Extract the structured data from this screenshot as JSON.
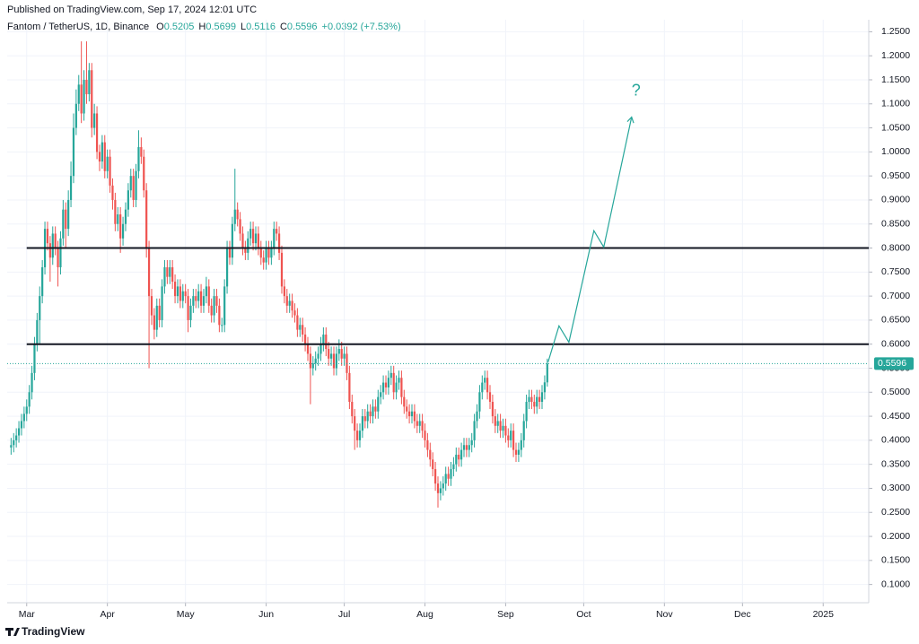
{
  "header": {
    "published": "Published on TradingView.com, Sep 17, 2024 12:01 UTC",
    "footer": "TradingView"
  },
  "chart_data": {
    "type": "candlestick",
    "title": "Fantom / TetherUS, 1D, Binance",
    "ohlc_legend": [
      {
        "key": "O",
        "text": "0.5205"
      },
      {
        "key": "H",
        "text": "0.5699"
      },
      {
        "key": "L",
        "text": "0.5116"
      },
      {
        "key": "C",
        "text": "0.5596"
      }
    ],
    "change": "+0.0392 (+7.53%)",
    "up_color": "#26a69a",
    "down_color": "#ef5350",
    "xlim": [
      53.5,
      384.5
    ],
    "ylim": [
      0.062,
      1.275
    ],
    "grid": true,
    "xticks": [
      {
        "value": 61,
        "label": "Mar"
      },
      {
        "value": 92,
        "label": "Apr"
      },
      {
        "value": 122,
        "label": "May"
      },
      {
        "value": 153,
        "label": "Jun"
      },
      {
        "value": 183,
        "label": "Jul"
      },
      {
        "value": 214,
        "label": "Aug"
      },
      {
        "value": 245,
        "label": "Sep"
      },
      {
        "value": 275,
        "label": "Oct"
      },
      {
        "value": 306,
        "label": "Nov"
      },
      {
        "value": 336,
        "label": "Dec"
      },
      {
        "value": 367,
        "label": "2025"
      }
    ],
    "yticks": [
      {
        "value": 0.1,
        "label": "0.1000"
      },
      {
        "value": 0.15,
        "label": "0.1500"
      },
      {
        "value": 0.2,
        "label": "0.2000"
      },
      {
        "value": 0.25,
        "label": "0.2500"
      },
      {
        "value": 0.3,
        "label": "0.3000"
      },
      {
        "value": 0.35,
        "label": "0.3500"
      },
      {
        "value": 0.4,
        "label": "0.4000"
      },
      {
        "value": 0.45,
        "label": "0.4500"
      },
      {
        "value": 0.5,
        "label": "0.5000"
      },
      {
        "value": 0.55,
        "label": "0.5500"
      },
      {
        "value": 0.6,
        "label": "0.6000"
      },
      {
        "value": 0.65,
        "label": "0.6500"
      },
      {
        "value": 0.7,
        "label": "0.7000"
      },
      {
        "value": 0.75,
        "label": "0.7500"
      },
      {
        "value": 0.8,
        "label": "0.8000"
      },
      {
        "value": 0.85,
        "label": "0.8500"
      },
      {
        "value": 0.9,
        "label": "0.9000"
      },
      {
        "value": 0.95,
        "label": "0.9500"
      },
      {
        "value": 1.0,
        "label": "1.0000"
      },
      {
        "value": 1.05,
        "label": "1.0500"
      },
      {
        "value": 1.1,
        "label": "1.1000"
      },
      {
        "value": 1.15,
        "label": "1.1500"
      },
      {
        "value": 1.2,
        "label": "1.2000"
      },
      {
        "value": 1.25,
        "label": "1.2500"
      }
    ],
    "hlines": [
      0.8,
      0.6
    ],
    "projection": {
      "label": "?",
      "color": "#26a69a",
      "x": [
        261.3,
        265.5,
        269.3,
        278.9,
        282.7,
        293.4
      ],
      "y": [
        0.5626,
        0.638,
        0.604,
        0.836,
        0.802,
        1.0725
      ]
    },
    "x": [
      55,
      56,
      57,
      58,
      59,
      60,
      61,
      62,
      63,
      64,
      65,
      66,
      67,
      68,
      69,
      70,
      71,
      72,
      73,
      74,
      75,
      76,
      77,
      78,
      79,
      80,
      81,
      82,
      83,
      84,
      85,
      86,
      87,
      88,
      89,
      90,
      91,
      92,
      93,
      94,
      95,
      96,
      97,
      98,
      99,
      100,
      101,
      102,
      103,
      104,
      105,
      106,
      107,
      108,
      109,
      110,
      111,
      112,
      113,
      114,
      115,
      116,
      117,
      118,
      119,
      120,
      121,
      122,
      123,
      124,
      125,
      126,
      127,
      128,
      129,
      130,
      131,
      132,
      133,
      134,
      135,
      136,
      137,
      138,
      139,
      140,
      141,
      142,
      143,
      144,
      145,
      146,
      147,
      148,
      149,
      150,
      151,
      152,
      153,
      154,
      155,
      156,
      157,
      158,
      159,
      160,
      161,
      162,
      163,
      164,
      165,
      166,
      167,
      168,
      169,
      170,
      171,
      172,
      173,
      174,
      175,
      176,
      177,
      178,
      179,
      180,
      181,
      182,
      183,
      184,
      185,
      186,
      187,
      188,
      189,
      190,
      191,
      192,
      193,
      194,
      195,
      196,
      197,
      198,
      199,
      200,
      201,
      202,
      203,
      204,
      205,
      206,
      207,
      208,
      209,
      210,
      211,
      212,
      213,
      214,
      215,
      216,
      217,
      218,
      219,
      220,
      221,
      222,
      223,
      224,
      225,
      226,
      227,
      228,
      229,
      230,
      231,
      232,
      233,
      234,
      235,
      236,
      237,
      238,
      239,
      240,
      241,
      242,
      243,
      244,
      245,
      246,
      247,
      248,
      249,
      250,
      251,
      252,
      253,
      254,
      255,
      256,
      257,
      258,
      259,
      260,
      261
    ],
    "open": [
      0.385,
      0.39,
      0.4,
      0.41,
      0.425,
      0.44,
      0.455,
      0.47,
      0.5,
      0.54,
      0.6,
      0.65,
      0.7,
      0.76,
      0.84,
      0.81,
      0.78,
      0.83,
      0.8,
      0.76,
      0.82,
      0.88,
      0.84,
      0.9,
      0.95,
      1.05,
      1.1,
      1.14,
      1.08,
      1.15,
      1.12,
      1.17,
      1.05,
      1.08,
      1.0,
      0.98,
      1.02,
      0.96,
      0.99,
      0.93,
      0.9,
      0.85,
      0.87,
      0.82,
      0.85,
      0.88,
      0.92,
      0.95,
      0.9,
      0.96,
      1.01,
      0.99,
      0.92,
      0.8,
      0.7,
      0.66,
      0.63,
      0.68,
      0.65,
      0.72,
      0.76,
      0.74,
      0.76,
      0.73,
      0.7,
      0.72,
      0.69,
      0.71,
      0.7,
      0.65,
      0.68,
      0.7,
      0.69,
      0.71,
      0.68,
      0.7,
      0.72,
      0.68,
      0.66,
      0.7,
      0.68,
      0.64,
      0.64,
      0.72,
      0.8,
      0.78,
      0.85,
      0.88,
      0.86,
      0.83,
      0.8,
      0.79,
      0.82,
      0.84,
      0.81,
      0.83,
      0.8,
      0.78,
      0.77,
      0.8,
      0.78,
      0.8,
      0.84,
      0.83,
      0.79,
      0.72,
      0.7,
      0.68,
      0.69,
      0.67,
      0.66,
      0.63,
      0.64,
      0.62,
      0.6,
      0.58,
      0.55,
      0.56,
      0.57,
      0.58,
      0.6,
      0.62,
      0.59,
      0.57,
      0.58,
      0.55,
      0.58,
      0.59,
      0.57,
      0.58,
      0.54,
      0.48,
      0.45,
      0.42,
      0.4,
      0.42,
      0.45,
      0.44,
      0.46,
      0.45,
      0.47,
      0.46,
      0.49,
      0.5,
      0.52,
      0.51,
      0.53,
      0.54,
      0.5,
      0.52,
      0.53,
      0.49,
      0.47,
      0.46,
      0.45,
      0.46,
      0.44,
      0.43,
      0.44,
      0.42,
      0.4,
      0.38,
      0.36,
      0.34,
      0.31,
      0.29,
      0.3,
      0.31,
      0.33,
      0.32,
      0.34,
      0.35,
      0.37,
      0.36,
      0.38,
      0.39,
      0.38,
      0.39,
      0.4,
      0.44,
      0.46,
      0.5,
      0.52,
      0.53,
      0.5,
      0.48,
      0.45,
      0.43,
      0.44,
      0.42,
      0.43,
      0.41,
      0.4,
      0.42,
      0.38,
      0.37,
      0.38,
      0.4,
      0.44,
      0.48,
      0.49,
      0.48,
      0.47,
      0.49,
      0.48,
      0.5,
      0.5205
    ],
    "high": [
      0.405,
      0.415,
      0.425,
      0.44,
      0.455,
      0.47,
      0.485,
      0.515,
      0.555,
      0.615,
      0.665,
      0.72,
      0.775,
      0.855,
      0.855,
      0.825,
      0.845,
      0.845,
      0.815,
      0.835,
      0.9,
      0.895,
      0.92,
      0.98,
      1.08,
      1.13,
      1.16,
      1.23,
      1.17,
      1.23,
      1.185,
      1.185,
      1.1,
      1.095,
      1.015,
      1.035,
      1.035,
      1.005,
      1.005,
      0.945,
      0.915,
      0.885,
      0.885,
      0.865,
      0.895,
      0.935,
      0.965,
      0.965,
      0.975,
      1.045,
      1.03,
      1.005,
      0.935,
      0.815,
      0.715,
      0.675,
      0.695,
      0.695,
      0.735,
      0.775,
      0.775,
      0.775,
      0.775,
      0.745,
      0.735,
      0.735,
      0.725,
      0.725,
      0.715,
      0.695,
      0.715,
      0.715,
      0.725,
      0.725,
      0.715,
      0.74,
      0.735,
      0.695,
      0.715,
      0.715,
      0.695,
      0.655,
      0.735,
      0.815,
      0.815,
      0.865,
      0.965,
      0.895,
      0.875,
      0.845,
      0.815,
      0.835,
      0.855,
      0.855,
      0.845,
      0.845,
      0.815,
      0.795,
      0.815,
      0.815,
      0.815,
      0.855,
      0.855,
      0.845,
      0.805,
      0.735,
      0.715,
      0.705,
      0.705,
      0.685,
      0.675,
      0.655,
      0.655,
      0.635,
      0.615,
      0.595,
      0.575,
      0.585,
      0.595,
      0.615,
      0.635,
      0.635,
      0.605,
      0.595,
      0.595,
      0.595,
      0.61,
      0.605,
      0.595,
      0.595,
      0.555,
      0.495,
      0.465,
      0.435,
      0.435,
      0.465,
      0.465,
      0.475,
      0.475,
      0.485,
      0.485,
      0.505,
      0.515,
      0.535,
      0.535,
      0.545,
      0.555,
      0.555,
      0.535,
      0.545,
      0.545,
      0.505,
      0.485,
      0.475,
      0.475,
      0.475,
      0.455,
      0.455,
      0.455,
      0.435,
      0.415,
      0.395,
      0.375,
      0.355,
      0.325,
      0.315,
      0.325,
      0.345,
      0.345,
      0.355,
      0.365,
      0.385,
      0.385,
      0.395,
      0.405,
      0.405,
      0.405,
      0.415,
      0.455,
      0.475,
      0.515,
      0.535,
      0.545,
      0.545,
      0.515,
      0.495,
      0.465,
      0.455,
      0.455,
      0.445,
      0.445,
      0.425,
      0.435,
      0.435,
      0.395,
      0.395,
      0.415,
      0.455,
      0.495,
      0.505,
      0.505,
      0.495,
      0.505,
      0.505,
      0.515,
      0.535,
      0.5699
    ],
    "low": [
      0.37,
      0.375,
      0.385,
      0.395,
      0.41,
      0.425,
      0.44,
      0.455,
      0.485,
      0.525,
      0.585,
      0.6,
      0.685,
      0.745,
      0.795,
      0.73,
      0.765,
      0.785,
      0.72,
      0.745,
      0.805,
      0.8,
      0.825,
      0.885,
      0.935,
      1.035,
      1.085,
      1.06,
      1.065,
      1.1,
      1.105,
      1.03,
      1.035,
      0.985,
      0.96,
      0.965,
      0.945,
      0.945,
      0.915,
      0.88,
      0.835,
      0.835,
      0.79,
      0.805,
      0.835,
      0.865,
      0.905,
      0.885,
      0.885,
      0.945,
      0.975,
      0.905,
      0.78,
      0.55,
      0.64,
      0.61,
      0.615,
      0.635,
      0.635,
      0.705,
      0.725,
      0.725,
      0.715,
      0.685,
      0.685,
      0.675,
      0.675,
      0.685,
      0.625,
      0.635,
      0.665,
      0.675,
      0.675,
      0.665,
      0.665,
      0.685,
      0.665,
      0.645,
      0.645,
      0.665,
      0.625,
      0.625,
      0.625,
      0.705,
      0.765,
      0.765,
      0.835,
      0.845,
      0.815,
      0.785,
      0.775,
      0.775,
      0.805,
      0.795,
      0.795,
      0.785,
      0.765,
      0.755,
      0.755,
      0.765,
      0.765,
      0.785,
      0.815,
      0.775,
      0.705,
      0.685,
      0.665,
      0.665,
      0.655,
      0.645,
      0.615,
      0.615,
      0.605,
      0.585,
      0.565,
      0.475,
      0.535,
      0.545,
      0.555,
      0.565,
      0.585,
      0.575,
      0.555,
      0.555,
      0.535,
      0.535,
      0.565,
      0.555,
      0.555,
      0.525,
      0.465,
      0.435,
      0.38,
      0.385,
      0.385,
      0.405,
      0.425,
      0.425,
      0.435,
      0.435,
      0.445,
      0.445,
      0.475,
      0.485,
      0.495,
      0.495,
      0.515,
      0.485,
      0.485,
      0.505,
      0.475,
      0.455,
      0.445,
      0.435,
      0.435,
      0.425,
      0.415,
      0.415,
      0.405,
      0.385,
      0.365,
      0.345,
      0.325,
      0.295,
      0.26,
      0.275,
      0.285,
      0.295,
      0.305,
      0.305,
      0.325,
      0.335,
      0.345,
      0.345,
      0.365,
      0.365,
      0.365,
      0.375,
      0.385,
      0.425,
      0.445,
      0.485,
      0.505,
      0.485,
      0.465,
      0.435,
      0.415,
      0.415,
      0.405,
      0.405,
      0.395,
      0.385,
      0.385,
      0.365,
      0.355,
      0.355,
      0.365,
      0.385,
      0.425,
      0.465,
      0.465,
      0.455,
      0.455,
      0.465,
      0.465,
      0.485,
      0.5116
    ],
    "close": [
      0.39,
      0.4,
      0.41,
      0.425,
      0.44,
      0.455,
      0.47,
      0.5,
      0.54,
      0.6,
      0.65,
      0.7,
      0.76,
      0.84,
      0.81,
      0.78,
      0.83,
      0.8,
      0.76,
      0.82,
      0.88,
      0.84,
      0.9,
      0.95,
      1.05,
      1.1,
      1.14,
      1.08,
      1.15,
      1.12,
      1.17,
      1.05,
      1.08,
      1.0,
      0.98,
      1.02,
      0.96,
      0.99,
      0.93,
      0.9,
      0.85,
      0.87,
      0.82,
      0.85,
      0.88,
      0.92,
      0.95,
      0.9,
      0.96,
      1.01,
      0.99,
      0.92,
      0.8,
      0.7,
      0.66,
      0.63,
      0.68,
      0.65,
      0.72,
      0.76,
      0.74,
      0.76,
      0.73,
      0.7,
      0.72,
      0.69,
      0.71,
      0.7,
      0.65,
      0.68,
      0.7,
      0.69,
      0.71,
      0.68,
      0.7,
      0.72,
      0.68,
      0.66,
      0.7,
      0.68,
      0.64,
      0.64,
      0.72,
      0.8,
      0.78,
      0.85,
      0.88,
      0.86,
      0.83,
      0.8,
      0.79,
      0.82,
      0.84,
      0.81,
      0.83,
      0.8,
      0.78,
      0.77,
      0.8,
      0.78,
      0.8,
      0.84,
      0.83,
      0.79,
      0.72,
      0.7,
      0.68,
      0.69,
      0.67,
      0.66,
      0.63,
      0.64,
      0.62,
      0.6,
      0.58,
      0.55,
      0.56,
      0.57,
      0.58,
      0.6,
      0.62,
      0.59,
      0.57,
      0.58,
      0.55,
      0.58,
      0.59,
      0.57,
      0.58,
      0.54,
      0.48,
      0.45,
      0.42,
      0.4,
      0.42,
      0.45,
      0.44,
      0.46,
      0.45,
      0.47,
      0.46,
      0.49,
      0.5,
      0.52,
      0.51,
      0.53,
      0.54,
      0.5,
      0.52,
      0.53,
      0.49,
      0.47,
      0.46,
      0.45,
      0.46,
      0.44,
      0.43,
      0.44,
      0.42,
      0.4,
      0.38,
      0.36,
      0.34,
      0.31,
      0.29,
      0.3,
      0.31,
      0.33,
      0.32,
      0.34,
      0.35,
      0.37,
      0.36,
      0.38,
      0.39,
      0.38,
      0.39,
      0.4,
      0.44,
      0.46,
      0.5,
      0.52,
      0.53,
      0.5,
      0.48,
      0.45,
      0.43,
      0.44,
      0.42,
      0.43,
      0.41,
      0.4,
      0.42,
      0.38,
      0.37,
      0.38,
      0.4,
      0.44,
      0.48,
      0.49,
      0.48,
      0.47,
      0.49,
      0.48,
      0.5,
      0.5205,
      0.5596
    ]
  }
}
